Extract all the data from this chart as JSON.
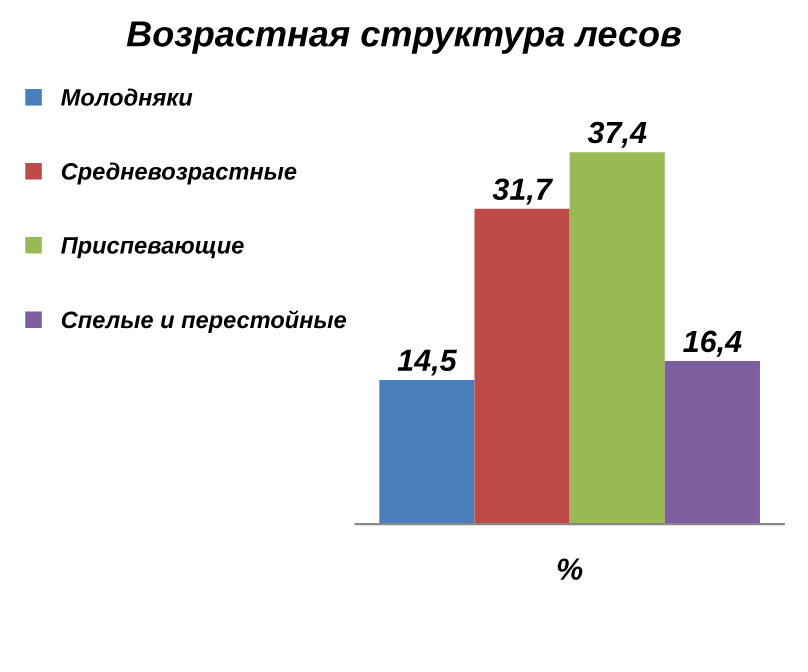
{
  "chart_data": {
    "type": "bar",
    "title": "Возрастная структура лесов",
    "xlabel": "%",
    "categories": [
      null
    ],
    "series": [
      {
        "name": "Молодняки",
        "color": "#4a7ebb",
        "values": [
          14.5
        ],
        "value_labels": [
          "14,5"
        ]
      },
      {
        "name": "Средневозрастные",
        "color": "#be4b48",
        "values": [
          31.7
        ],
        "value_labels": [
          "31,7"
        ]
      },
      {
        "name": "Приспевающие",
        "color": "#98b954",
        "values": [
          37.4
        ],
        "value_labels": [
          "37,4"
        ]
      },
      {
        "name": "Спелые и перестойные",
        "color": "#7d5fa0",
        "values": [
          16.4
        ],
        "value_labels": [
          "16,4"
        ]
      }
    ],
    "relative": false,
    "legend": "left",
    "grid": false,
    "tick_labels": false
  }
}
